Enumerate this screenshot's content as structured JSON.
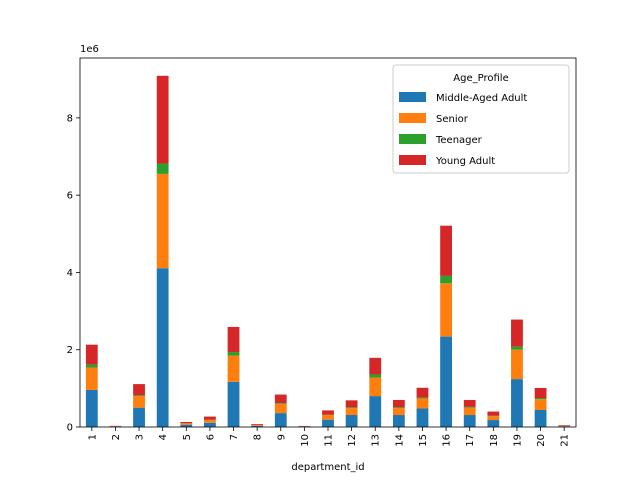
{
  "chart_data": {
    "type": "bar",
    "stacked": true,
    "categories": [
      "1",
      "2",
      "3",
      "4",
      "5",
      "6",
      "7",
      "8",
      "9",
      "10",
      "11",
      "12",
      "13",
      "14",
      "15",
      "16",
      "17",
      "18",
      "19",
      "20",
      "21"
    ],
    "xlabel": "department_id",
    "ylabel": "",
    "y_scale_label": "1e6",
    "ylim": [
      0,
      9550000
    ],
    "yticks": [
      0,
      2000000,
      4000000,
      6000000,
      8000000
    ],
    "ytick_labels": [
      "0",
      "2",
      "4",
      "6",
      "8"
    ],
    "legend": {
      "title": "Age_Profile",
      "position": "upper right"
    },
    "series": [
      {
        "name": "Middle-Aged Adult",
        "color": "#1f77b4",
        "values": [
          960000,
          14000,
          500000,
          4110000,
          60000,
          110000,
          1170000,
          30000,
          360000,
          12000,
          190000,
          310000,
          800000,
          310000,
          480000,
          2340000,
          310000,
          180000,
          1240000,
          440000,
          20000
        ]
      },
      {
        "name": "Senior",
        "color": "#ff7f0e",
        "values": [
          580000,
          8000,
          300000,
          2440000,
          35000,
          70000,
          680000,
          20000,
          240000,
          7000,
          120000,
          180000,
          480000,
          180000,
          260000,
          1380000,
          190000,
          100000,
          760000,
          280000,
          13000
        ]
      },
      {
        "name": "Teenager",
        "color": "#2ca02c",
        "values": [
          80000,
          1000,
          20000,
          270000,
          3000,
          8000,
          90000,
          3000,
          20000,
          1000,
          10000,
          20000,
          80000,
          20000,
          25000,
          190000,
          20000,
          10000,
          80000,
          30000,
          2000
        ]
      },
      {
        "name": "Young Adult",
        "color": "#d62728",
        "values": [
          510000,
          7000,
          290000,
          2270000,
          32000,
          82000,
          650000,
          22000,
          220000,
          8000,
          110000,
          180000,
          430000,
          190000,
          250000,
          1300000,
          180000,
          110000,
          700000,
          260000,
          14000
        ]
      }
    ]
  }
}
